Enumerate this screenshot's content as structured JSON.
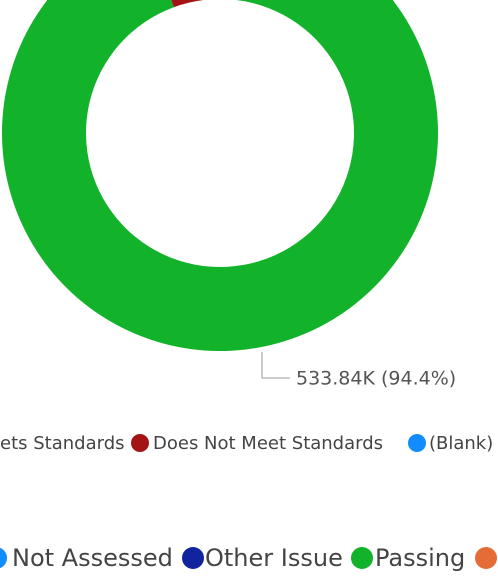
{
  "chart_data": {
    "type": "donut",
    "categories": [
      "Passing",
      null
    ],
    "values": [
      533840,
      31660
    ],
    "value_labels": [
      "533.84K (94.4%)",
      null
    ],
    "colors": [
      "#12b32a",
      "#a31515"
    ],
    "legends": [
      {
        "items": [
          {
            "name": "ets Standards"
          },
          {
            "name": "Does Not Meet Standards",
            "color": "#a31515"
          },
          {
            "name": "(Blank)",
            "color": "#118dff"
          }
        ]
      },
      {
        "items": [
          {
            "name": "Not Assessed",
            "color": "#118dff"
          },
          {
            "name": "Other Issue",
            "color": "#12239e"
          },
          {
            "name": "Passing",
            "color": "#12b32a"
          },
          {
            "color": "#e66c37"
          }
        ]
      }
    ]
  }
}
